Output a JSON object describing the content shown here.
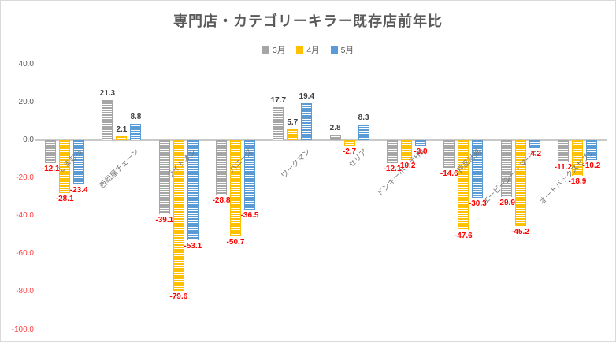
{
  "chart_data": {
    "type": "bar",
    "title": "専門店・カテゴリーキラー既存店前年比",
    "categories": [
      "しまむら",
      "西松屋チェーン",
      "ライトオン",
      "ハニーズ",
      "ワークマン",
      "セリア",
      "ドンキーホーテHD",
      "良品計画",
      "エービーシー・マート",
      "オートバックスセブン"
    ],
    "series": [
      {
        "name": "3月",
        "color": "#a6a6a6",
        "values": [
          -12.1,
          21.3,
          -39.1,
          -28.8,
          17.7,
          2.8,
          -12.1,
          -14.6,
          -29.9,
          -11.2
        ]
      },
      {
        "name": "4月",
        "color": "#ffc000",
        "values": [
          -28.1,
          2.1,
          -79.6,
          -50.7,
          5.7,
          -2.7,
          -10.2,
          -47.6,
          -45.2,
          -18.9
        ]
      },
      {
        "name": "5月",
        "color": "#5b9bd5",
        "values": [
          -23.4,
          8.8,
          -53.1,
          -36.5,
          19.4,
          8.3,
          -3.0,
          -30.3,
          -4.2,
          -10.2
        ]
      }
    ],
    "ylim": [
      -100,
      40
    ],
    "ytick_step": 20,
    "yticks": [
      "40.0",
      "20.0",
      "0.0",
      "-20.0",
      "-40.0",
      "-60.0",
      "-80.0",
      "-100.0"
    ],
    "ylabel": "",
    "xlabel": "",
    "legend_position": "top-center",
    "gridlines": false,
    "bar_fill_style": "horizontal-stripes",
    "positive_label_color": "#404040",
    "negative_label_color": "#ff0000",
    "negative_tick_color": "#ff4040"
  }
}
